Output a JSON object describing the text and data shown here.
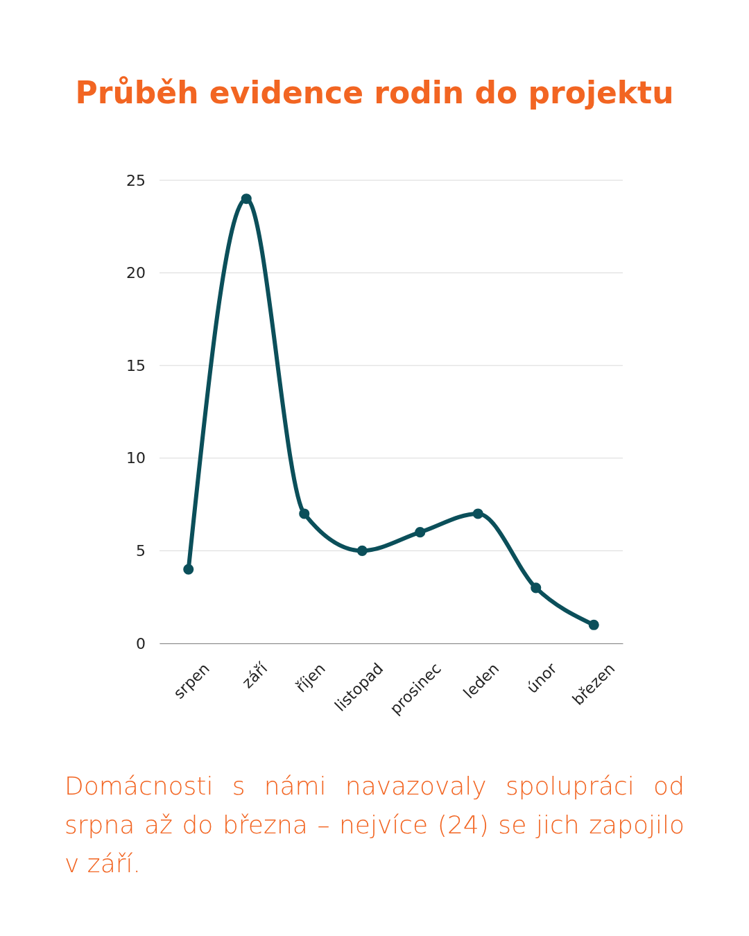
{
  "chart_data": {
    "type": "line",
    "title": "Průběh evidence rodin do projektu",
    "categories": [
      "srpen",
      "září",
      "říjen",
      "listopad",
      "prosinec",
      "leden",
      "únor",
      "březen"
    ],
    "series": [
      {
        "color": "#0b4f5a",
        "values": [
          4,
          24,
          7,
          5,
          6,
          7,
          3,
          1
        ]
      }
    ],
    "ylim": [
      0,
      25
    ],
    "yticks": [
      0,
      5,
      10,
      15,
      20,
      25
    ],
    "grid": "y",
    "marker": "circle",
    "line_style": "solid",
    "annotations": [
      "Domácnosti s námi navazovaly spolupráci od srpna až do března – nejvíce (24) se jich zapojilo v září."
    ]
  }
}
